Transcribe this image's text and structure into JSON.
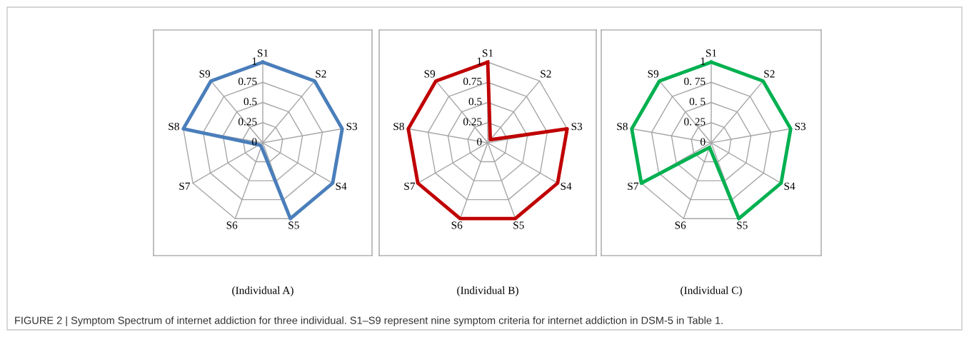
{
  "chart_data": [
    {
      "type": "radar",
      "title": "(Individual A)",
      "categories": [
        "S1",
        "S2",
        "S3",
        "S4",
        "S5",
        "S6",
        "S7",
        "S8",
        "S9"
      ],
      "series": [
        {
          "color": "#4a7ebb",
          "values": [
            1,
            1,
            1,
            1,
            1,
            0.05,
            0.05,
            1,
            1
          ]
        }
      ],
      "ylim": [
        0,
        1
      ],
      "yticks": [
        0,
        0.25,
        0.5,
        0.75,
        1
      ],
      "annotations": [
        "FIGURE 2 | Symptom Spectrum of internet addiction for three individual. S1–S9 represent nine symptom criteria for internet addiction in DSM-5 in Table 1."
      ]
    },
    {
      "type": "radar",
      "title": "(Individual B)",
      "categories": [
        "S1",
        "S2",
        "S3",
        "S4",
        "S5",
        "S6",
        "S7",
        "S8",
        "S9"
      ],
      "series": [
        {
          "color": "#c00000",
          "values": [
            1,
            0.05,
            1,
            1,
            1,
            1,
            1,
            1,
            1
          ]
        }
      ],
      "ylim": [
        0,
        1
      ],
      "yticks": [
        0,
        0.25,
        0.5,
        0.75,
        1
      ]
    },
    {
      "type": "radar",
      "title": "(Individual C)",
      "categories": [
        "S1",
        "S2",
        "S3",
        "S4",
        "S5",
        "S6",
        "S7",
        "S8",
        "S9"
      ],
      "series": [
        {
          "color": "#00b050",
          "values": [
            1,
            1,
            1,
            1,
            1,
            0.06,
            1,
            1,
            1
          ]
        }
      ],
      "ylim": [
        0,
        1
      ],
      "yticks": [
        0,
        {
          "value": 0.25,
          "label": "0. 25"
        },
        {
          "value": 0.5,
          "label": "0. 5"
        },
        {
          "value": 0.75,
          "label": "0. 75"
        },
        1
      ]
    }
  ]
}
